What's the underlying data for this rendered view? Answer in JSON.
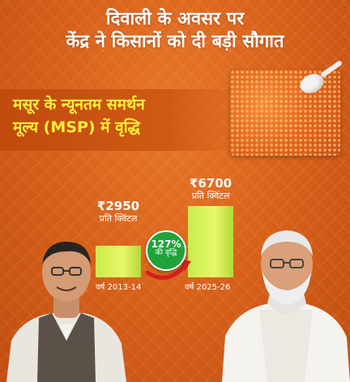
{
  "headline": {
    "line1": "दिवाली के अवसर पर",
    "line2": "केंद्र ने किसानों को दी बड़ी सौगात"
  },
  "band": {
    "line1": "मसूर के न्यूनतम समर्थन",
    "line2": "मूल्य (MSP) में वृद्धि"
  },
  "bars": [
    {
      "amount": "₹2950",
      "unit": "प्रति क्विंटल",
      "year": "वर्ष 2013-14",
      "value": 2950
    },
    {
      "amount": "₹6700",
      "unit": "प्रति क्विंटल",
      "year": "वर्ष 2025-26",
      "value": 6700
    }
  ],
  "badge": {
    "percent": "127%",
    "word": "वृद्धि",
    "prefix": "की"
  },
  "colors": {
    "background": "#d9621a",
    "headline": "#ffffff",
    "band_text": "#ffef3a",
    "bar": "#d8f050",
    "badge": "#1fa33a",
    "arrow": "#d81f1f"
  }
}
